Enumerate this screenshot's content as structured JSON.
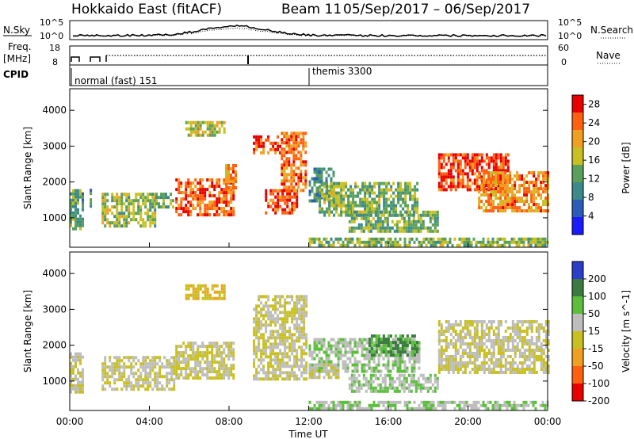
{
  "title": {
    "station": "Hokkaido East (fitACF)",
    "beam": "Beam 11",
    "dates": "05/Sep/2017 – 06/Sep/2017"
  },
  "noise_panel": {
    "left_label": "N.Sky",
    "right_label": "N.Search",
    "ticks": [
      "10^5",
      "10^0"
    ]
  },
  "freq_panel": {
    "left_label": "Freq.",
    "left_unit": "[MHz]",
    "left_ticks": [
      "18",
      "8"
    ],
    "right_label": "Nave",
    "right_ticks": [
      "60",
      "0"
    ]
  },
  "cpid_panel": {
    "label": "CPID",
    "segments": [
      "normal (fast) 151",
      "themis 3300"
    ]
  },
  "chart_data": [
    {
      "type": "heatmap",
      "title": "",
      "xlabel": "Time UT",
      "ylabel": "Slant Range [km]",
      "x_ticks": [
        "00:00",
        "04:00",
        "08:00",
        "12:00",
        "16:00",
        "20:00",
        "00:00"
      ],
      "x_range_hours": [
        0,
        24
      ],
      "y_ticks": [
        1000,
        2000,
        3000,
        4000
      ],
      "ylim": [
        180,
        4600
      ],
      "colorbar": {
        "label": "Power [dB]",
        "ticks": [
          4,
          8,
          12,
          16,
          20,
          24,
          28
        ],
        "range": [
          0,
          30
        ],
        "colors": [
          "#1a1aff",
          "#2b5cb8",
          "#3d8a8a",
          "#5aa05a",
          "#c8c020",
          "#f0a020",
          "#ff6010",
          "#e80000"
        ]
      },
      "regions": [
        {
          "t": [
            0.0,
            0.7
          ],
          "r": [
            700,
            1800
          ],
          "v": 12
        },
        {
          "t": [
            1.0,
            1.1
          ],
          "r": [
            1200,
            1900
          ],
          "v": 10
        },
        {
          "t": [
            1.6,
            4.3
          ],
          "r": [
            800,
            1700
          ],
          "v": 15
        },
        {
          "t": [
            4.3,
            5.2
          ],
          "r": [
            1300,
            1700
          ],
          "v": 12
        },
        {
          "t": [
            5.3,
            8.2
          ],
          "r": [
            1100,
            2100
          ],
          "v": 24
        },
        {
          "t": [
            7.8,
            8.3
          ],
          "r": [
            1800,
            2500
          ],
          "v": 22
        },
        {
          "t": [
            5.8,
            7.8
          ],
          "r": [
            3300,
            3700
          ],
          "v": 17
        },
        {
          "t": [
            9.2,
            10.6
          ],
          "r": [
            2800,
            3300
          ],
          "v": 25
        },
        {
          "t": [
            9.8,
            11.4
          ],
          "r": [
            1100,
            1800
          ],
          "v": 25
        },
        {
          "t": [
            10.6,
            11.9
          ],
          "r": [
            1800,
            3400
          ],
          "v": 23
        },
        {
          "t": [
            12.0,
            13.2
          ],
          "r": [
            1500,
            2400
          ],
          "v": 10
        },
        {
          "t": [
            12.5,
            17.5
          ],
          "r": [
            1100,
            2000
          ],
          "v": 14
        },
        {
          "t": [
            14.0,
            18.5
          ],
          "r": [
            600,
            1200
          ],
          "v": 13
        },
        {
          "t": [
            18.5,
            22.0
          ],
          "r": [
            1800,
            2800
          ],
          "v": 26
        },
        {
          "t": [
            20.5,
            24.0
          ],
          "r": [
            1200,
            2300
          ],
          "v": 22
        },
        {
          "t": [
            12.0,
            24.0
          ],
          "r": [
            200,
            450
          ],
          "v": 14
        }
      ]
    },
    {
      "type": "heatmap",
      "title": "",
      "xlabel": "Time UT",
      "ylabel": "Slant Range [km]",
      "x_ticks": [
        "00:00",
        "04:00",
        "08:00",
        "12:00",
        "16:00",
        "20:00",
        "00:00"
      ],
      "x_range_hours": [
        0,
        24
      ],
      "y_ticks": [
        1000,
        2000,
        3000,
        4000
      ],
      "ylim": [
        180,
        4600
      ],
      "colorbar": {
        "label": "Velocity [m s^-1]",
        "ticks": [
          200,
          100,
          50,
          15,
          -15,
          -50,
          -100,
          -200
        ],
        "colors": [
          "#2a3ec8",
          "#3a7a40",
          "#5cbf3c",
          "#bdbdbd",
          "#c8c020",
          "#f0a020",
          "#ff6010",
          "#e80000"
        ]
      },
      "regions": [
        {
          "t": [
            0.0,
            0.7
          ],
          "r": [
            700,
            1800
          ],
          "v": 0
        },
        {
          "t": [
            1.6,
            5.2
          ],
          "r": [
            800,
            1700
          ],
          "v": 0
        },
        {
          "t": [
            5.3,
            8.2
          ],
          "r": [
            1100,
            2100
          ],
          "v": 0
        },
        {
          "t": [
            5.8,
            7.8
          ],
          "r": [
            3300,
            3700
          ],
          "v": -30
        },
        {
          "t": [
            9.2,
            11.9
          ],
          "r": [
            1100,
            3400
          ],
          "v": 0
        },
        {
          "t": [
            12.0,
            17.5
          ],
          "r": [
            1300,
            2200
          ],
          "v": 30
        },
        {
          "t": [
            15.0,
            17.5
          ],
          "r": [
            1700,
            2300
          ],
          "v": 80
        },
        {
          "t": [
            12.0,
            13.5
          ],
          "r": [
            1100,
            1500
          ],
          "v": 0
        },
        {
          "t": [
            14.0,
            18.5
          ],
          "r": [
            700,
            1200
          ],
          "v": 30
        },
        {
          "t": [
            18.5,
            24.0
          ],
          "r": [
            1200,
            2700
          ],
          "v": 0
        },
        {
          "t": [
            12.0,
            24.0
          ],
          "r": [
            200,
            450
          ],
          "v": 30
        }
      ]
    }
  ]
}
